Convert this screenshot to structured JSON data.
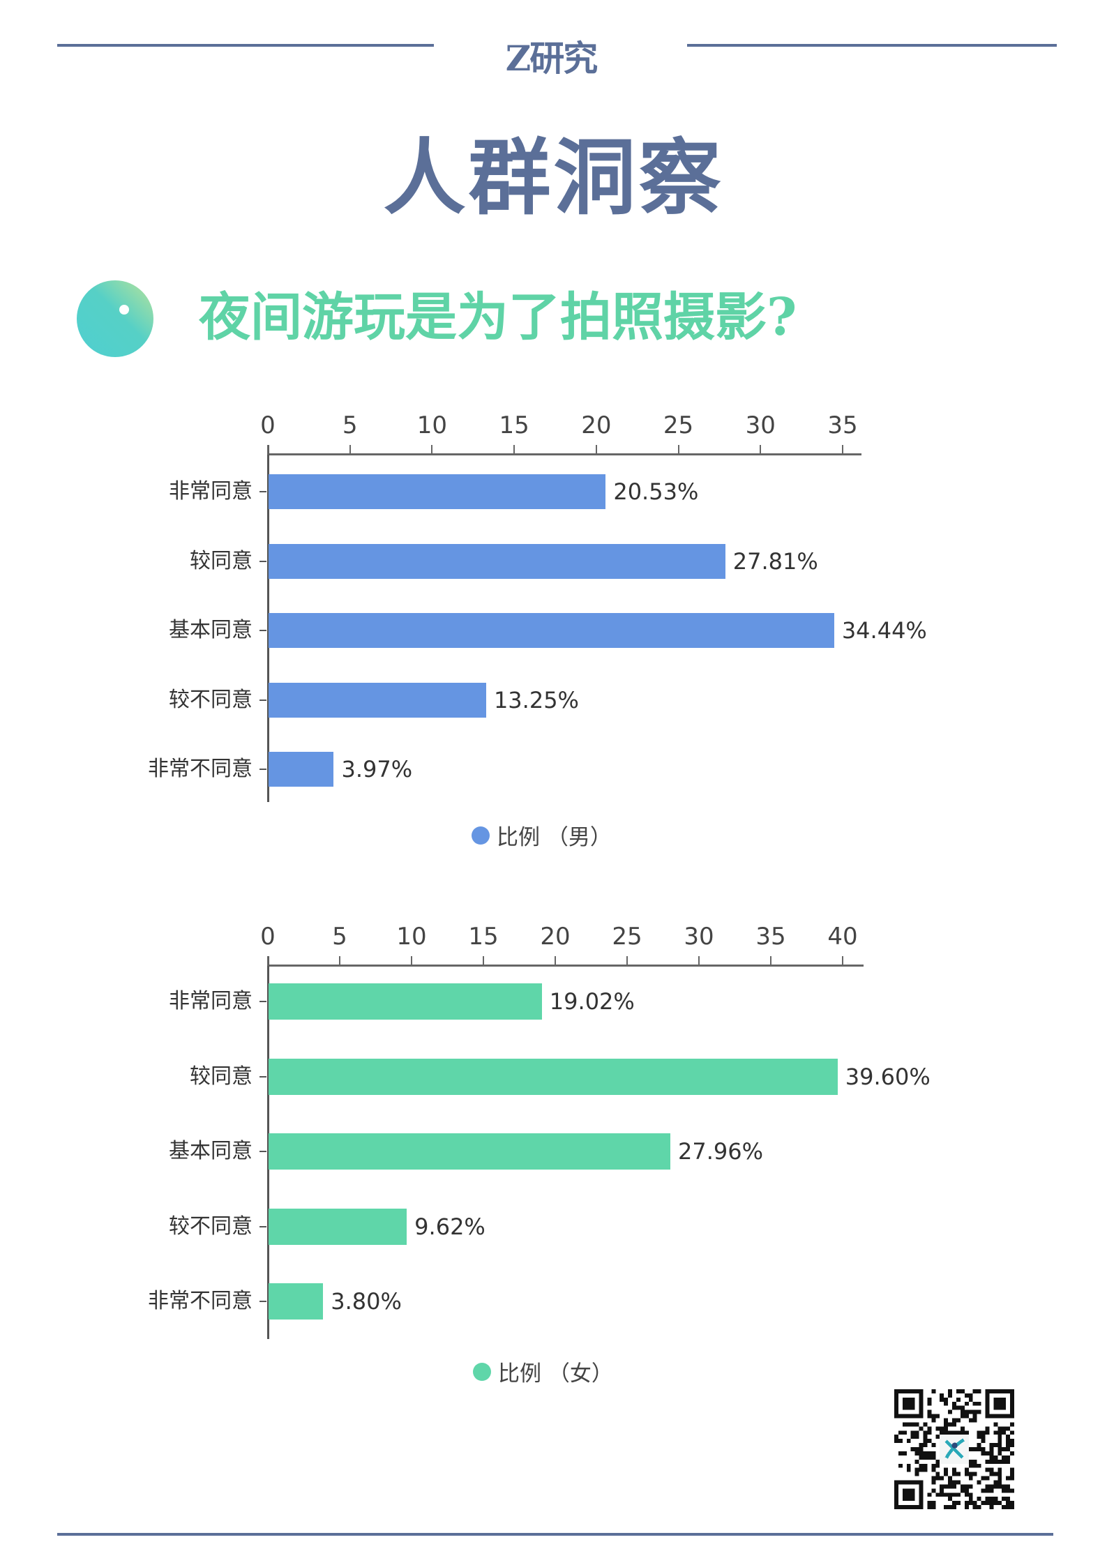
{
  "header": {
    "brand": "Z研究",
    "title": "人群洞察",
    "line_color": "#5b6f98"
  },
  "section": {
    "icon": "gradient-circle-icon",
    "subtitle": "夜间游玩是为了拍照摄影?"
  },
  "chart_data": [
    {
      "type": "bar",
      "orientation": "horizontal",
      "categories": [
        "非常同意",
        "较同意",
        "基本同意",
        "较不同意",
        "非常不同意"
      ],
      "series": [
        {
          "name": "比例（男）",
          "values": [
            20.53,
            27.81,
            34.44,
            13.25,
            3.97
          ],
          "color": "#6595e2"
        }
      ],
      "value_labels": [
        "20.53%",
        "27.81%",
        "34.44%",
        "13.25%",
        "3.97%"
      ],
      "x_ticks": [
        0,
        5,
        10,
        15,
        20,
        25,
        30,
        35
      ],
      "xlim": [
        0,
        35
      ],
      "xaxis_position": "top",
      "legend": {
        "label": "比例 （男）",
        "position": "bottom"
      },
      "grid": false
    },
    {
      "type": "bar",
      "orientation": "horizontal",
      "categories": [
        "非常同意",
        "较同意",
        "基本同意",
        "较不同意",
        "非常不同意"
      ],
      "series": [
        {
          "name": "比例（女）",
          "values": [
            19.02,
            39.6,
            27.96,
            9.62,
            3.8
          ],
          "color": "#5fd6a9"
        }
      ],
      "value_labels": [
        "19.02%",
        "39.60%",
        "27.96%",
        "9.62%",
        "3.80%"
      ],
      "x_ticks": [
        0,
        5,
        10,
        15,
        20,
        25,
        30,
        35,
        40
      ],
      "xlim": [
        0,
        40
      ],
      "xaxis_position": "top",
      "legend": {
        "label": "比例 （女）",
        "position": "bottom"
      },
      "grid": false
    }
  ],
  "footer": {
    "qr_icon": "qr-code-icon"
  }
}
